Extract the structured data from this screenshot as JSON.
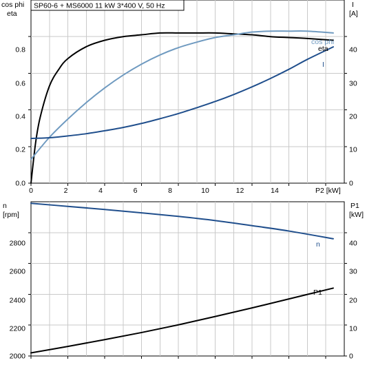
{
  "chart_data": [
    {
      "type": "line",
      "title": "SP60-6 + MS6000   11 kW   3*400 V, 50 Hz",
      "xlabel": "P2 [kW]",
      "xlim": [
        0,
        17
      ],
      "xticks": [
        0,
        2,
        4,
        6,
        8,
        10,
        12,
        14
      ],
      "ylabel_left": [
        "cos phi",
        "eta"
      ],
      "ylim_left": [
        0,
        1.0
      ],
      "yticks_left": [
        "0.0",
        "0.2",
        "0.4",
        "0.6",
        "0.8"
      ],
      "ylabel_right": [
        "I",
        "[A]"
      ],
      "ylim_right": [
        0,
        50
      ],
      "yticks_right": [
        "0",
        "10",
        "20",
        "30",
        "40"
      ],
      "grid": true,
      "series": [
        {
          "name": "eta",
          "axis": "left",
          "color": "#000000",
          "x": [
            0,
            0.25,
            0.5,
            1,
            1.5,
            2,
            3,
            4,
            5,
            6,
            7,
            8,
            9,
            10,
            11,
            12,
            13,
            14,
            15,
            16.4
          ],
          "y": [
            0,
            0.22,
            0.36,
            0.53,
            0.62,
            0.68,
            0.745,
            0.78,
            0.8,
            0.81,
            0.82,
            0.82,
            0.82,
            0.82,
            0.815,
            0.81,
            0.8,
            0.795,
            0.79,
            0.78
          ]
        },
        {
          "name": "cos phi",
          "axis": "left",
          "color": "#6f9ac0",
          "x": [
            0,
            1,
            2,
            3,
            4,
            5,
            6,
            7,
            8,
            9,
            10,
            11,
            12,
            13,
            14,
            15,
            16.4
          ],
          "y": [
            0.13,
            0.25,
            0.35,
            0.44,
            0.52,
            0.59,
            0.65,
            0.7,
            0.74,
            0.77,
            0.795,
            0.81,
            0.825,
            0.83,
            0.83,
            0.83,
            0.82
          ]
        },
        {
          "name": "I",
          "axis": "right",
          "color": "#1f4e8c",
          "x": [
            0,
            1,
            2,
            3,
            4,
            5,
            6,
            7,
            8,
            9,
            10,
            11,
            12,
            13,
            14,
            15,
            16.4
          ],
          "y": [
            12.2,
            12.4,
            12.9,
            13.5,
            14.3,
            15.2,
            16.3,
            17.6,
            19.0,
            20.6,
            22.3,
            24.2,
            26.3,
            28.6,
            31.1,
            33.8,
            37.2
          ]
        }
      ]
    },
    {
      "type": "line",
      "xlim": [
        0,
        17
      ],
      "ylabel_left": [
        "n",
        "[rpm]"
      ],
      "ylim_left": [
        2000,
        3000
      ],
      "yticks_left": [
        "2000",
        "2200",
        "2400",
        "2600",
        "2800"
      ],
      "ylabel_right": [
        "P1",
        "[kW]"
      ],
      "ylim_right": [
        0,
        50
      ],
      "yticks_right": [
        "0",
        "10",
        "20",
        "30",
        "40"
      ],
      "grid": true,
      "series": [
        {
          "name": "n",
          "axis": "left",
          "color": "#1f4e8c",
          "x": [
            0,
            2,
            4,
            6,
            8,
            10,
            12,
            14,
            16.4
          ],
          "y": [
            2990,
            2970,
            2950,
            2928,
            2905,
            2878,
            2845,
            2810,
            2760
          ]
        },
        {
          "name": "P1",
          "axis": "right",
          "color": "#000000",
          "x": [
            0,
            2,
            4,
            6,
            8,
            10,
            12,
            14,
            16.4
          ],
          "y": [
            1.0,
            3.1,
            5.3,
            7.6,
            10.1,
            12.8,
            15.6,
            18.5,
            22.0
          ]
        }
      ]
    }
  ]
}
